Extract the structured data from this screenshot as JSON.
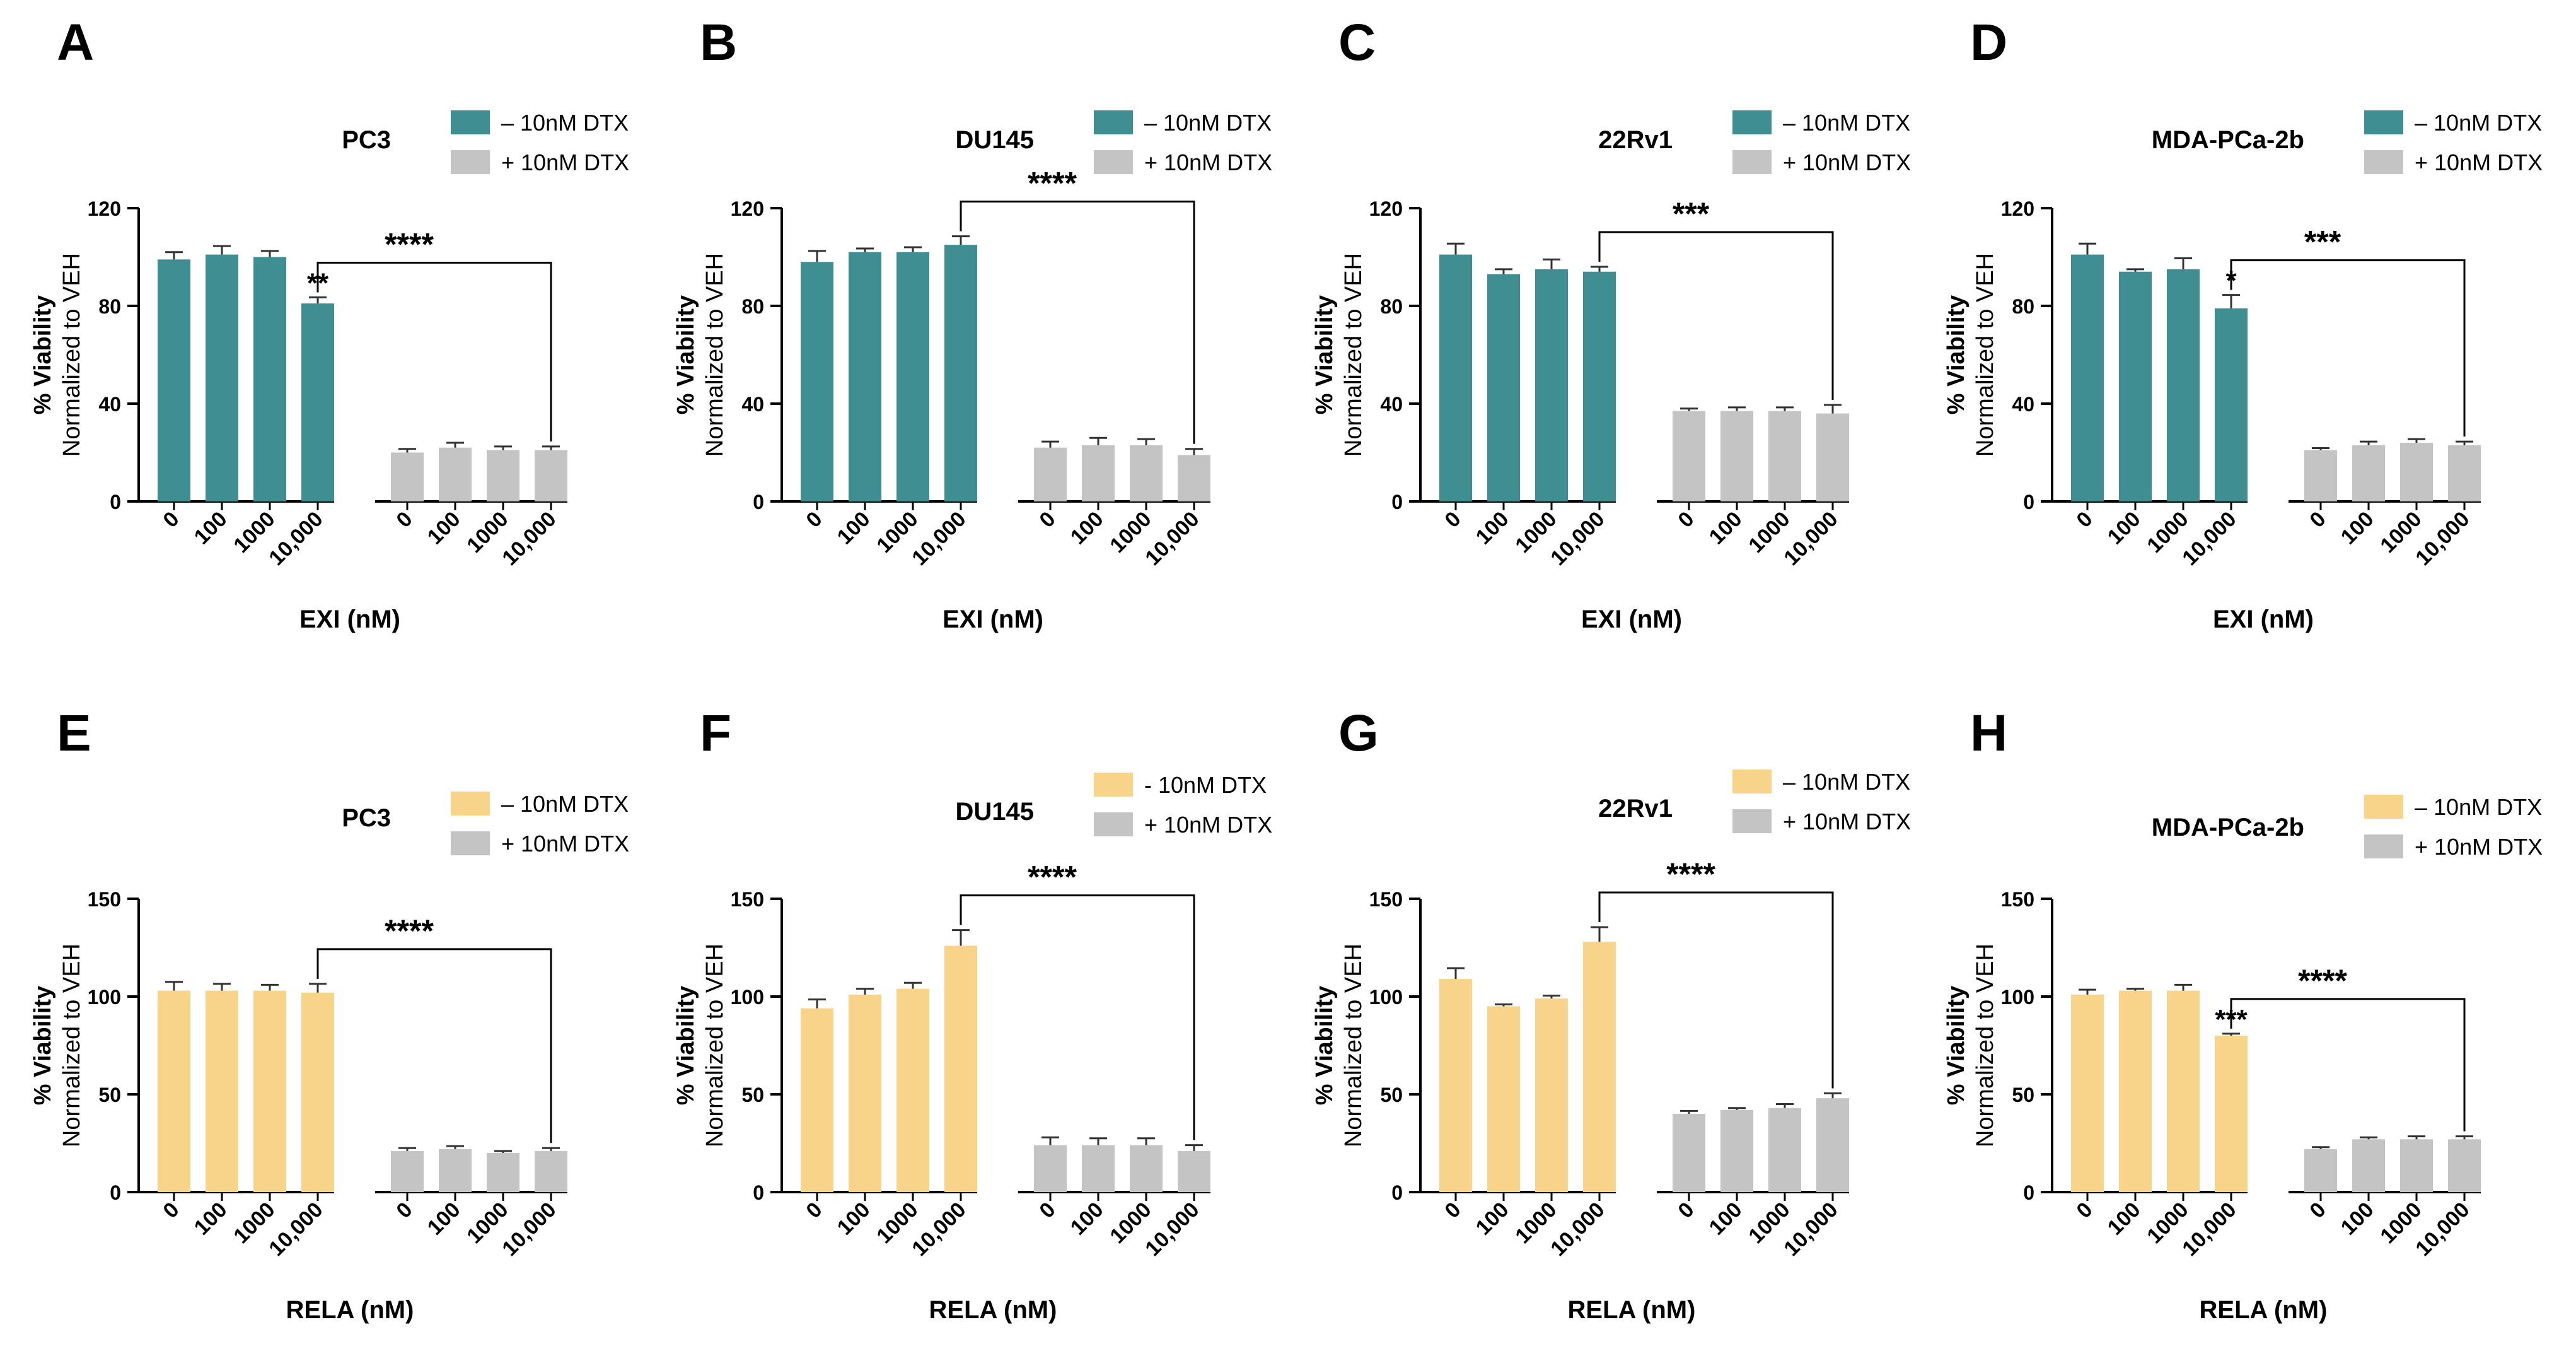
{
  "colors": {
    "teal": "#3E8E92",
    "yellow": "#F8D48A",
    "gray": "#C4C4C4",
    "ink": "#000000"
  },
  "chart_data": [
    {
      "panel": "A",
      "type": "bar",
      "title": "PC3",
      "xlabel": "EXI (nM)",
      "ylabel_top": "% Viability",
      "ylabel_bottom": "Normalized to VEH",
      "ylim": [
        0,
        120
      ],
      "yticks": [
        "0",
        "40",
        "80",
        "120"
      ],
      "categories": [
        "0",
        "100",
        "1000",
        "10,000"
      ],
      "series": [
        {
          "name": "– 10nM DTX",
          "color": "teal",
          "values": [
            99,
            101,
            100,
            81
          ],
          "errors": [
            3,
            3.5,
            2.5,
            2.5
          ],
          "marks": [
            "",
            "",
            "",
            "**"
          ]
        },
        {
          "name": "+ 10nM DTX",
          "color": "gray",
          "values": [
            20,
            22,
            21,
            21
          ],
          "errors": [
            1.5,
            2,
            1.5,
            1.5
          ]
        }
      ],
      "bracket": "****"
    },
    {
      "panel": "B",
      "type": "bar",
      "title": "DU145",
      "xlabel": "EXI (nM)",
      "ylabel_top": "% Viability",
      "ylabel_bottom": "Normalized to VEH",
      "ylim": [
        0,
        120
      ],
      "yticks": [
        "0",
        "40",
        "80",
        "120"
      ],
      "categories": [
        "0",
        "100",
        "1000",
        "10,000"
      ],
      "series": [
        {
          "name": "– 10nM DTX",
          "color": "teal",
          "values": [
            98,
            102,
            102,
            105
          ],
          "errors": [
            4.5,
            1.5,
            2,
            3.5
          ],
          "marks": [
            "",
            "",
            "",
            ""
          ]
        },
        {
          "name": "+ 10nM DTX",
          "color": "gray",
          "values": [
            22,
            23,
            23,
            19
          ],
          "errors": [
            2.5,
            3,
            2.5,
            2.5
          ]
        }
      ],
      "bracket": "****"
    },
    {
      "panel": "C",
      "type": "bar",
      "title": "22Rv1",
      "xlabel": "EXI (nM)",
      "ylabel_top": "% Viability",
      "ylabel_bottom": "Normalized to VEH",
      "ylim": [
        0,
        120
      ],
      "yticks": [
        "0",
        "40",
        "80",
        "120"
      ],
      "categories": [
        "0",
        "100",
        "1000",
        "10,000"
      ],
      "series": [
        {
          "name": "– 10nM DTX",
          "color": "teal",
          "values": [
            101,
            93,
            95,
            94
          ],
          "errors": [
            4.5,
            2,
            4,
            2
          ],
          "marks": [
            "",
            "",
            "",
            ""
          ]
        },
        {
          "name": "+ 10nM DTX",
          "color": "gray",
          "values": [
            37,
            37,
            37,
            36
          ],
          "errors": [
            1,
            1.5,
            1.5,
            3.5
          ]
        }
      ],
      "bracket": "***"
    },
    {
      "panel": "D",
      "type": "bar",
      "title": "MDA-PCa-2b",
      "xlabel": "EXI (nM)",
      "ylabel_top": "% Viability",
      "ylabel_bottom": "Normalized to VEH",
      "ylim": [
        0,
        120
      ],
      "yticks": [
        "0",
        "40",
        "80",
        "120"
      ],
      "categories": [
        "0",
        "100",
        "1000",
        "10,000"
      ],
      "series": [
        {
          "name": "– 10nM DTX",
          "color": "teal",
          "values": [
            101,
            94,
            95,
            79
          ],
          "errors": [
            4.5,
            1,
            4.5,
            5.5
          ],
          "marks": [
            "",
            "",
            "",
            "*"
          ]
        },
        {
          "name": "+ 10nM DTX",
          "color": "gray",
          "values": [
            21,
            23,
            24,
            23
          ],
          "errors": [
            0.8,
            1.5,
            1.5,
            1.5
          ]
        }
      ],
      "bracket": "***"
    },
    {
      "panel": "E",
      "type": "bar",
      "title": "PC3",
      "xlabel": "RELA (nM)",
      "ylabel_top": "% Viability",
      "ylabel_bottom": "Normalized to VEH",
      "ylim": [
        0,
        150
      ],
      "yticks": [
        "0",
        "50",
        "100",
        "150"
      ],
      "categories": [
        "0",
        "100",
        "1000",
        "10,000"
      ],
      "series": [
        {
          "name": "– 10nM DTX",
          "color": "yellow",
          "values": [
            103,
            103,
            103,
            102
          ],
          "errors": [
            4.5,
            3.5,
            3,
            4.5
          ],
          "marks": [
            "",
            "",
            "",
            ""
          ]
        },
        {
          "name": "+ 10nM DTX",
          "color": "gray",
          "values": [
            21,
            22,
            20,
            21
          ],
          "errors": [
            1.5,
            1.5,
            1,
            1.5
          ]
        }
      ],
      "bracket": "****"
    },
    {
      "panel": "F",
      "type": "bar",
      "title": "DU145",
      "xlabel": "RELA (nM)",
      "ylabel_top": "% Viability",
      "ylabel_bottom": "Normalized to VEH",
      "ylim": [
        0,
        150
      ],
      "yticks": [
        "0",
        "50",
        "100",
        "150"
      ],
      "categories": [
        "0",
        "100",
        "1000",
        "10,000"
      ],
      "series": [
        {
          "name": "- 10nM DTX",
          "color": "yellow",
          "values": [
            94,
            101,
            104,
            126
          ],
          "errors": [
            4.5,
            3,
            3,
            8
          ],
          "marks": [
            "",
            "",
            "",
            ""
          ]
        },
        {
          "name": "+ 10nM DTX",
          "color": "gray",
          "values": [
            24,
            24,
            24,
            21
          ],
          "errors": [
            4,
            3.5,
            3.5,
            3
          ]
        }
      ],
      "bracket": "****"
    },
    {
      "panel": "G",
      "type": "bar",
      "title": "22Rv1",
      "xlabel": "RELA (nM)",
      "ylabel_top": "% Viability",
      "ylabel_bottom": "Normalized to VEH",
      "ylim": [
        0,
        150
      ],
      "yticks": [
        "0",
        "50",
        "100",
        "150"
      ],
      "categories": [
        "0",
        "100",
        "1000",
        "10,000"
      ],
      "series": [
        {
          "name": "– 10nM DTX",
          "color": "yellow",
          "values": [
            109,
            95,
            99,
            128
          ],
          "errors": [
            5.5,
            1,
            1.5,
            7.5
          ],
          "marks": [
            "",
            "",
            "",
            ""
          ]
        },
        {
          "name": "+ 10nM DTX",
          "color": "gray",
          "values": [
            40,
            42,
            43,
            48
          ],
          "errors": [
            1.5,
            1,
            2,
            2.5
          ]
        }
      ],
      "bracket": "****"
    },
    {
      "panel": "H",
      "type": "bar",
      "title": "MDA-PCa-2b",
      "xlabel": "RELA (nM)",
      "ylabel_top": "% Viability",
      "ylabel_bottom": "Normalized to VEH",
      "ylim": [
        0,
        150
      ],
      "yticks": [
        "0",
        "50",
        "100",
        "150"
      ],
      "categories": [
        "0",
        "100",
        "1000",
        "10,000"
      ],
      "series": [
        {
          "name": "– 10nM DTX",
          "color": "yellow",
          "values": [
            101,
            103,
            103,
            80
          ],
          "errors": [
            2.5,
            1,
            3,
            1
          ],
          "marks": [
            "",
            "",
            "",
            "***"
          ]
        },
        {
          "name": "+ 10nM DTX",
          "color": "gray",
          "values": [
            22,
            27,
            27,
            27
          ],
          "errors": [
            1,
            1,
            1.5,
            1.5
          ]
        }
      ],
      "bracket": "****"
    }
  ]
}
